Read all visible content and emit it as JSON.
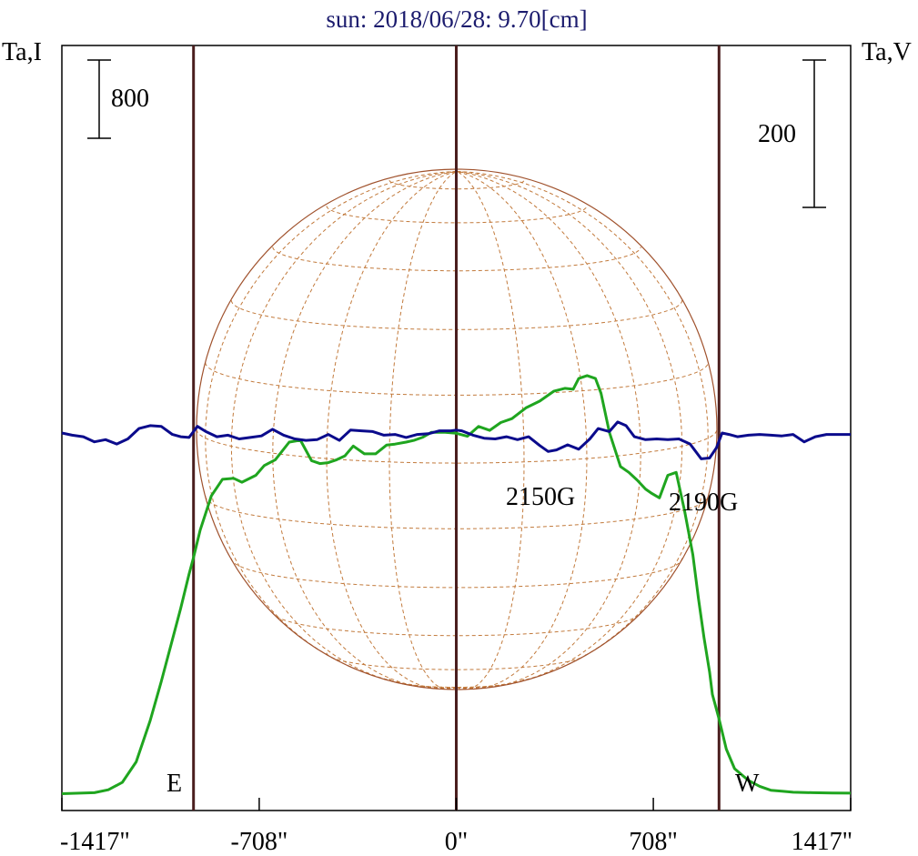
{
  "chart_data": {
    "type": "line",
    "title": "sun: 2018/06/28: 9.70[cm]",
    "y_left_label": "Ta,I",
    "y_right_label": "Ta,V",
    "x_ticks": [
      "-1417\"",
      "-708\"",
      "0\"",
      "708\"",
      "1417\""
    ],
    "x_tick_values": [
      -1417,
      -708,
      0,
      708,
      1417
    ],
    "xlim": [
      -1417,
      1417
    ],
    "limb_positions": [
      -944,
      0,
      944
    ],
    "limb_labels": {
      "east": "E",
      "west": "W"
    },
    "scale_bars": {
      "intensity": "800",
      "polarization": "200"
    },
    "annotations": [
      {
        "text": "2150G",
        "x": 350
      },
      {
        "text": "2190G",
        "x": 920
      }
    ],
    "colors": {
      "title": "#1c1c6e",
      "intensity": "#1fa51f",
      "polarization": "#0b0b8c",
      "limb": "#4a1e1e",
      "disk": "#a0522d",
      "grid": "#c27a3c"
    },
    "series": [
      {
        "axis": "left",
        "x": [
          -1417,
          -1300,
          -1250,
          -1200,
          -1150,
          -1100,
          -1060,
          -1020,
          -990,
          -960,
          -944,
          -920,
          -880,
          -840,
          -800,
          -770,
          -720,
          -690,
          -650,
          -600,
          -560,
          -520,
          -490,
          -460,
          -430,
          -400,
          -370,
          -330,
          -290,
          -250,
          -220,
          -180,
          -150,
          -120,
          -90,
          -40,
          0,
          40,
          80,
          120,
          160,
          200,
          250,
          300,
          350,
          390,
          420,
          440,
          470,
          500,
          520,
          550,
          590,
          620,
          650,
          680,
          700,
          730,
          760,
          790,
          820,
          850,
          870,
          890,
          910,
          920,
          944,
          970,
          1000,
          1050,
          1090,
          1130,
          1170,
          1210,
          1280,
          1350,
          1417
        ],
        "y": [
          5,
          15,
          45,
          120,
          330,
          750,
          1150,
          1580,
          1900,
          2250,
          2420,
          2700,
          3050,
          3220,
          3230,
          3190,
          3260,
          3360,
          3420,
          3600,
          3620,
          3410,
          3380,
          3390,
          3420,
          3460,
          3560,
          3480,
          3480,
          3570,
          3580,
          3600,
          3620,
          3650,
          3700,
          3700,
          3690,
          3660,
          3760,
          3720,
          3800,
          3840,
          3950,
          4020,
          4120,
          4150,
          4140,
          4250,
          4280,
          4250,
          4100,
          3700,
          3350,
          3290,
          3210,
          3120,
          3080,
          3030,
          3260,
          3290,
          2900,
          2450,
          2000,
          1600,
          1250,
          1020,
          770,
          460,
          260,
          140,
          80,
          40,
          30,
          20,
          15,
          12,
          10
        ]
      },
      {
        "axis": "right",
        "x": [
          -1417,
          -1380,
          -1340,
          -1300,
          -1260,
          -1220,
          -1180,
          -1140,
          -1100,
          -1060,
          -1020,
          -990,
          -960,
          -930,
          -900,
          -860,
          -820,
          -780,
          -740,
          -700,
          -660,
          -620,
          -580,
          -540,
          -500,
          -460,
          -420,
          -380,
          -340,
          -300,
          -260,
          -220,
          -180,
          -140,
          -100,
          -60,
          -20,
          0,
          20,
          60,
          100,
          140,
          180,
          220,
          260,
          300,
          330,
          360,
          400,
          440,
          480,
          510,
          550,
          580,
          610,
          640,
          680,
          720,
          760,
          800,
          840,
          880,
          910,
          935,
          955,
          980,
          1010,
          1050,
          1090,
          1130,
          1170,
          1210,
          1250,
          1290,
          1330,
          1380,
          1417
        ],
        "y": [
          0,
          -3,
          -5,
          -12,
          -9,
          -15,
          -8,
          6,
          10,
          9,
          -2,
          -5,
          -6,
          9,
          2,
          -5,
          -3,
          -8,
          -6,
          -4,
          5,
          -3,
          -8,
          -10,
          -9,
          -2,
          -10,
          4,
          3,
          2,
          -3,
          -2,
          -6,
          -2,
          -1,
          3,
          3,
          4,
          3,
          -3,
          -7,
          -8,
          -5,
          -9,
          -5,
          -17,
          -25,
          -23,
          -16,
          -22,
          -8,
          6,
          2,
          15,
          10,
          -5,
          -9,
          -8,
          -9,
          -8,
          -15,
          -35,
          -34,
          -20,
          0,
          -2,
          -5,
          -3,
          -2,
          -3,
          -4,
          -2,
          -12,
          -5,
          -2,
          -2,
          -2
        ]
      }
    ]
  }
}
